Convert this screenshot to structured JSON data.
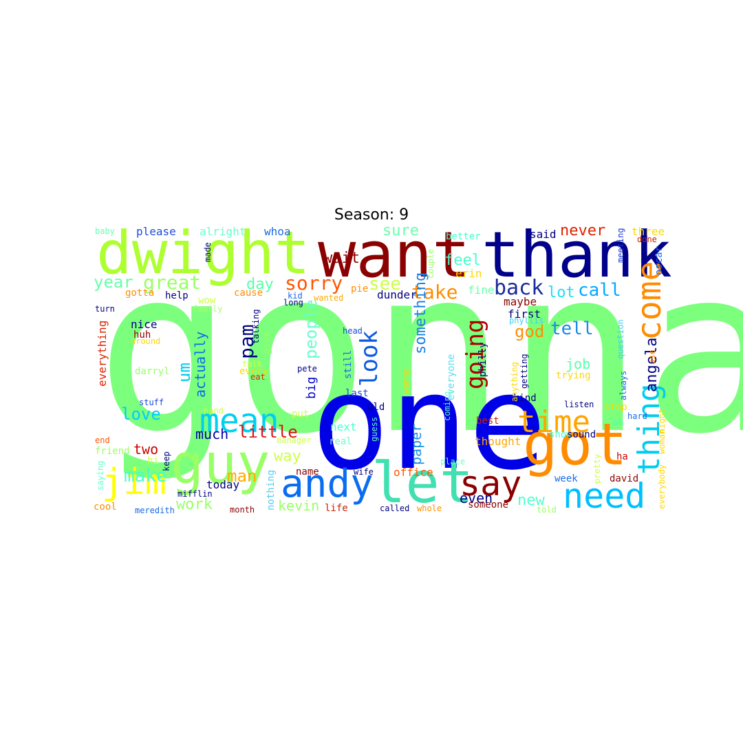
{
  "title": "Season: 9",
  "words": [
    {
      "text": "gonna",
      "color": "#7cff7c",
      "rotated": false
    },
    {
      "text": "one",
      "color": "#0000e6",
      "rotated": false
    },
    {
      "text": "thank",
      "color": "#00008b",
      "rotated": false
    },
    {
      "text": "want",
      "color": "#8b0000",
      "rotated": false
    },
    {
      "text": "dwight",
      "color": "#adff2f",
      "rotated": false
    },
    {
      "text": "got",
      "color": "#ff8c00",
      "rotated": false
    },
    {
      "text": "guy",
      "color": "#99ff66",
      "rotated": false
    },
    {
      "text": "let",
      "color": "#40e0b0",
      "rotated": false
    },
    {
      "text": "andy",
      "color": "#0a6cf0",
      "rotated": false
    },
    {
      "text": "need",
      "color": "#00bfff",
      "rotated": false
    },
    {
      "text": "time",
      "color": "#ffa500",
      "rotated": false
    },
    {
      "text": "say",
      "color": "#8b0000",
      "rotated": false
    },
    {
      "text": "thing",
      "color": "#00ccee",
      "rotated": true
    },
    {
      "text": "come",
      "color": "#ff8c00",
      "rotated": true
    },
    {
      "text": "mean",
      "color": "#00d0f0",
      "rotated": false
    },
    {
      "text": "jim",
      "color": "#ffff00",
      "rotated": false
    },
    {
      "text": "back",
      "color": "#1a2a9a",
      "rotated": false
    },
    {
      "text": "sorry",
      "color": "#ff5500",
      "rotated": false
    },
    {
      "text": "look",
      "color": "#0a5ae0",
      "rotated": true
    },
    {
      "text": "going",
      "color": "#aa0000",
      "rotated": true
    },
    {
      "text": "take",
      "color": "#ff8c00",
      "rotated": false
    },
    {
      "text": "see",
      "color": "#ccff44",
      "rotated": false
    },
    {
      "text": "great",
      "color": "#99ff66",
      "rotated": false
    },
    {
      "text": "wait",
      "color": "#8b0000",
      "rotated": false
    },
    {
      "text": "sure",
      "color": "#66ffaa",
      "rotated": false
    },
    {
      "text": "never",
      "color": "#dd2200",
      "rotated": false
    },
    {
      "text": "call",
      "color": "#00aaff",
      "rotated": false
    },
    {
      "text": "tell",
      "color": "#1a8ae6",
      "rotated": false
    },
    {
      "text": "god",
      "color": "#ff8c00",
      "rotated": false
    },
    {
      "text": "feel",
      "color": "#44ffcc",
      "rotated": false
    },
    {
      "text": "lot",
      "color": "#22ddee",
      "rotated": false
    },
    {
      "text": "year",
      "color": "#66ffaa",
      "rotated": false
    },
    {
      "text": "day",
      "color": "#55ffaa",
      "rotated": false
    },
    {
      "text": "pam",
      "color": "#000080",
      "rotated": true
    },
    {
      "text": "people",
      "color": "#66ffcc",
      "rotated": true
    },
    {
      "text": "something",
      "color": "#1a80e6",
      "rotated": true
    },
    {
      "text": "love",
      "color": "#00ccff",
      "rotated": false
    },
    {
      "text": "little",
      "color": "#dd1111",
      "rotated": false
    },
    {
      "text": "much",
      "color": "#0000aa",
      "rotated": false
    },
    {
      "text": "make",
      "color": "#44ffcc",
      "rotated": false
    },
    {
      "text": "man",
      "color": "#ffaa00",
      "rotated": false
    },
    {
      "text": "work",
      "color": "#99ff66",
      "rotated": false
    },
    {
      "text": "way",
      "color": "#ccff44",
      "rotated": false
    },
    {
      "text": "two",
      "color": "#cc0000",
      "rotated": false
    },
    {
      "text": "angela",
      "color": "#000080",
      "rotated": true
    },
    {
      "text": "job",
      "color": "#55ffaa",
      "rotated": false
    },
    {
      "text": "new",
      "color": "#55ffcc",
      "rotated": false
    },
    {
      "text": "even",
      "color": "#000080",
      "rotated": false
    },
    {
      "text": "actually",
      "color": "#0a6cf0",
      "rotated": true
    },
    {
      "text": "um",
      "color": "#00ccee",
      "rotated": true
    },
    {
      "text": "kevin",
      "color": "#99ff66",
      "rotated": false
    },
    {
      "text": "today",
      "color": "#000080",
      "rotated": false
    },
    {
      "text": "paper",
      "color": "#1a90e6",
      "rotated": true
    },
    {
      "text": "big",
      "color": "#0000cc",
      "rotated": true
    },
    {
      "text": "office",
      "color": "#ff5500",
      "rotated": false
    },
    {
      "text": "thought",
      "color": "#ffa500",
      "rotated": false
    },
    {
      "text": "please",
      "color": "#1a4ad6",
      "rotated": false
    },
    {
      "text": "alright",
      "color": "#66ffcc",
      "rotated": false
    },
    {
      "text": "whoa",
      "color": "#1a6ae6",
      "rotated": false
    },
    {
      "text": "better",
      "color": "#44ffcc",
      "rotated": false
    },
    {
      "text": "said",
      "color": "#000080",
      "rotated": false
    },
    {
      "text": "three",
      "color": "#ffd700",
      "rotated": false
    },
    {
      "text": "done",
      "color": "#cc2200",
      "rotated": false
    },
    {
      "text": "meeting",
      "color": "#1a3ad6",
      "rotated": true
    },
    {
      "text": "oscar",
      "color": "#1a6ae6",
      "rotated": true
    },
    {
      "text": "erin",
      "color": "#ffd700",
      "rotated": false
    },
    {
      "text": "fine",
      "color": "#66ffaa",
      "rotated": false
    },
    {
      "text": "maybe",
      "color": "#8b0000",
      "rotated": false
    },
    {
      "text": "first",
      "color": "#000080",
      "rotated": false
    },
    {
      "text": "phyllis",
      "color": "#44ccee",
      "rotated": false
    },
    {
      "text": "dunder",
      "color": "#000080",
      "rotated": false
    },
    {
      "text": "pie",
      "color": "#ff8c00",
      "rotated": false
    },
    {
      "text": "cause",
      "color": "#ff8c00",
      "rotated": false
    },
    {
      "text": "help",
      "color": "#000080",
      "rotated": false
    },
    {
      "text": "gotta",
      "color": "#ff8c00",
      "rotated": false
    },
    {
      "text": "wow",
      "color": "#ccff44",
      "rotated": false
    },
    {
      "text": "family",
      "color": "#aaff66",
      "rotated": false
    },
    {
      "text": "long",
      "color": "#000080",
      "rotated": false
    },
    {
      "text": "kid",
      "color": "#1a6ae6",
      "rotated": false
    },
    {
      "text": "wanted",
      "color": "#ffaa00",
      "rotated": false
    },
    {
      "text": "turn",
      "color": "#000080",
      "rotated": false
    },
    {
      "text": "nice",
      "color": "#000080",
      "rotated": false
    },
    {
      "text": "huh",
      "color": "#8b0000",
      "rotated": false
    },
    {
      "text": "around",
      "color": "#ffd700",
      "rotated": false
    },
    {
      "text": "everything",
      "color": "#dd2200",
      "rotated": true
    },
    {
      "text": "darryl",
      "color": "#99ff66",
      "rotated": false
    },
    {
      "text": "stuff",
      "color": "#1a4ad6",
      "rotated": false
    },
    {
      "text": "hand",
      "color": "#ccff44",
      "rotated": false
    },
    {
      "text": "end",
      "color": "#ff5500",
      "rotated": false
    },
    {
      "text": "friend",
      "color": "#99ff66",
      "rotated": false
    },
    {
      "text": "hi",
      "color": "#ccff44",
      "rotated": false
    },
    {
      "text": "saying",
      "color": "#66ffcc",
      "rotated": true
    },
    {
      "text": "cool",
      "color": "#ff8c00",
      "rotated": false
    },
    {
      "text": "meredith",
      "color": "#1a6ae6",
      "rotated": false
    },
    {
      "text": "mifflin",
      "color": "#000080",
      "rotated": false
    },
    {
      "text": "month",
      "color": "#8b0000",
      "rotated": false
    },
    {
      "text": "keep",
      "color": "#000080",
      "rotated": true
    },
    {
      "text": "made",
      "color": "#000080",
      "rotated": true
    },
    {
      "text": "talking",
      "color": "#000080",
      "rotated": true
    },
    {
      "text": "give",
      "color": "#99ff66",
      "rotated": true
    },
    {
      "text": "talk",
      "color": "#ccff44",
      "rotated": false
    },
    {
      "text": "every",
      "color": "#ffd700",
      "rotated": false
    },
    {
      "text": "eat",
      "color": "#dd2200",
      "rotated": false
    },
    {
      "text": "pete",
      "color": "#000080",
      "rotated": false
    },
    {
      "text": "put",
      "color": "#ccff44",
      "rotated": false
    },
    {
      "text": "manager",
      "color": "#ccff44",
      "rotated": false
    },
    {
      "text": "name",
      "color": "#8b0000",
      "rotated": false
    },
    {
      "text": "nothing",
      "color": "#55ccee",
      "rotated": true
    },
    {
      "text": "life",
      "color": "#cc2200",
      "rotated": false
    },
    {
      "text": "head",
      "color": "#1a4ad6",
      "rotated": false
    },
    {
      "text": "still",
      "color": "#1a6ae6",
      "rotated": true
    },
    {
      "text": "last",
      "color": "#1a4ad6",
      "rotated": false
    },
    {
      "text": "old",
      "color": "#000080",
      "rotated": false
    },
    {
      "text": "guess",
      "color": "#66ffaa",
      "rotated": true
    },
    {
      "text": "next",
      "color": "#44ffcc",
      "rotated": false
    },
    {
      "text": "real",
      "color": "#66ffcc",
      "rotated": false
    },
    {
      "text": "wife",
      "color": "#000080",
      "rotated": false
    },
    {
      "text": "called",
      "color": "#000080",
      "rotated": false
    },
    {
      "text": "whole",
      "color": "#ff8c00",
      "rotated": false
    },
    {
      "text": "wanna",
      "color": "#ffd700",
      "rotated": true
    },
    {
      "text": "everyone",
      "color": "#55ddee",
      "rotated": true
    },
    {
      "text": "coming",
      "color": "#66ffcc",
      "rotated": true
    },
    {
      "text": "best",
      "color": "#cc2200",
      "rotated": false
    },
    {
      "text": "place",
      "color": "#66ffcc",
      "rotated": false
    },
    {
      "text": "someone",
      "color": "#8b0000",
      "rotated": false
    },
    {
      "text": "philly",
      "color": "#000080",
      "rotated": true
    },
    {
      "text": "couple",
      "color": "#99ff66",
      "rotated": true
    },
    {
      "text": "kind",
      "color": "#000080",
      "rotated": false
    },
    {
      "text": "getting",
      "color": "#000080",
      "rotated": true
    },
    {
      "text": "anything",
      "color": "#ffd700",
      "rotated": true
    },
    {
      "text": "trying",
      "color": "#ffd700",
      "rotated": false
    },
    {
      "text": "listen",
      "color": "#000080",
      "rotated": false
    },
    {
      "text": "stop",
      "color": "#ffd700",
      "rotated": false
    },
    {
      "text": "show",
      "color": "#44ffcc",
      "rotated": false
    },
    {
      "text": "sound",
      "color": "#000080",
      "rotated": false
    },
    {
      "text": "ah",
      "color": "#55ffaa",
      "rotated": false
    },
    {
      "text": "hard",
      "color": "#1a6ae6",
      "rotated": false
    },
    {
      "text": "night",
      "color": "#ffd700",
      "rotated": true
    },
    {
      "text": "question",
      "color": "#44ccee",
      "rotated": true
    },
    {
      "text": "always",
      "color": "#1a6ae6",
      "rotated": true
    },
    {
      "text": "use",
      "color": "#ff8c00",
      "rotated": true
    },
    {
      "text": "pretty",
      "color": "#ccff44",
      "rotated": true
    },
    {
      "text": "ha",
      "color": "#cc0000",
      "rotated": false
    },
    {
      "text": "david",
      "color": "#8b0000",
      "rotated": false
    },
    {
      "text": "week",
      "color": "#1a6ae6",
      "rotated": false
    },
    {
      "text": "woman",
      "color": "#ffd700",
      "rotated": true
    },
    {
      "text": "everybody",
      "color": "#ffd700",
      "rotated": true
    },
    {
      "text": "told",
      "color": "#99ff66",
      "rotated": false
    },
    {
      "text": "baby",
      "color": "#66ffaa",
      "rotated": false
    }
  ]
}
